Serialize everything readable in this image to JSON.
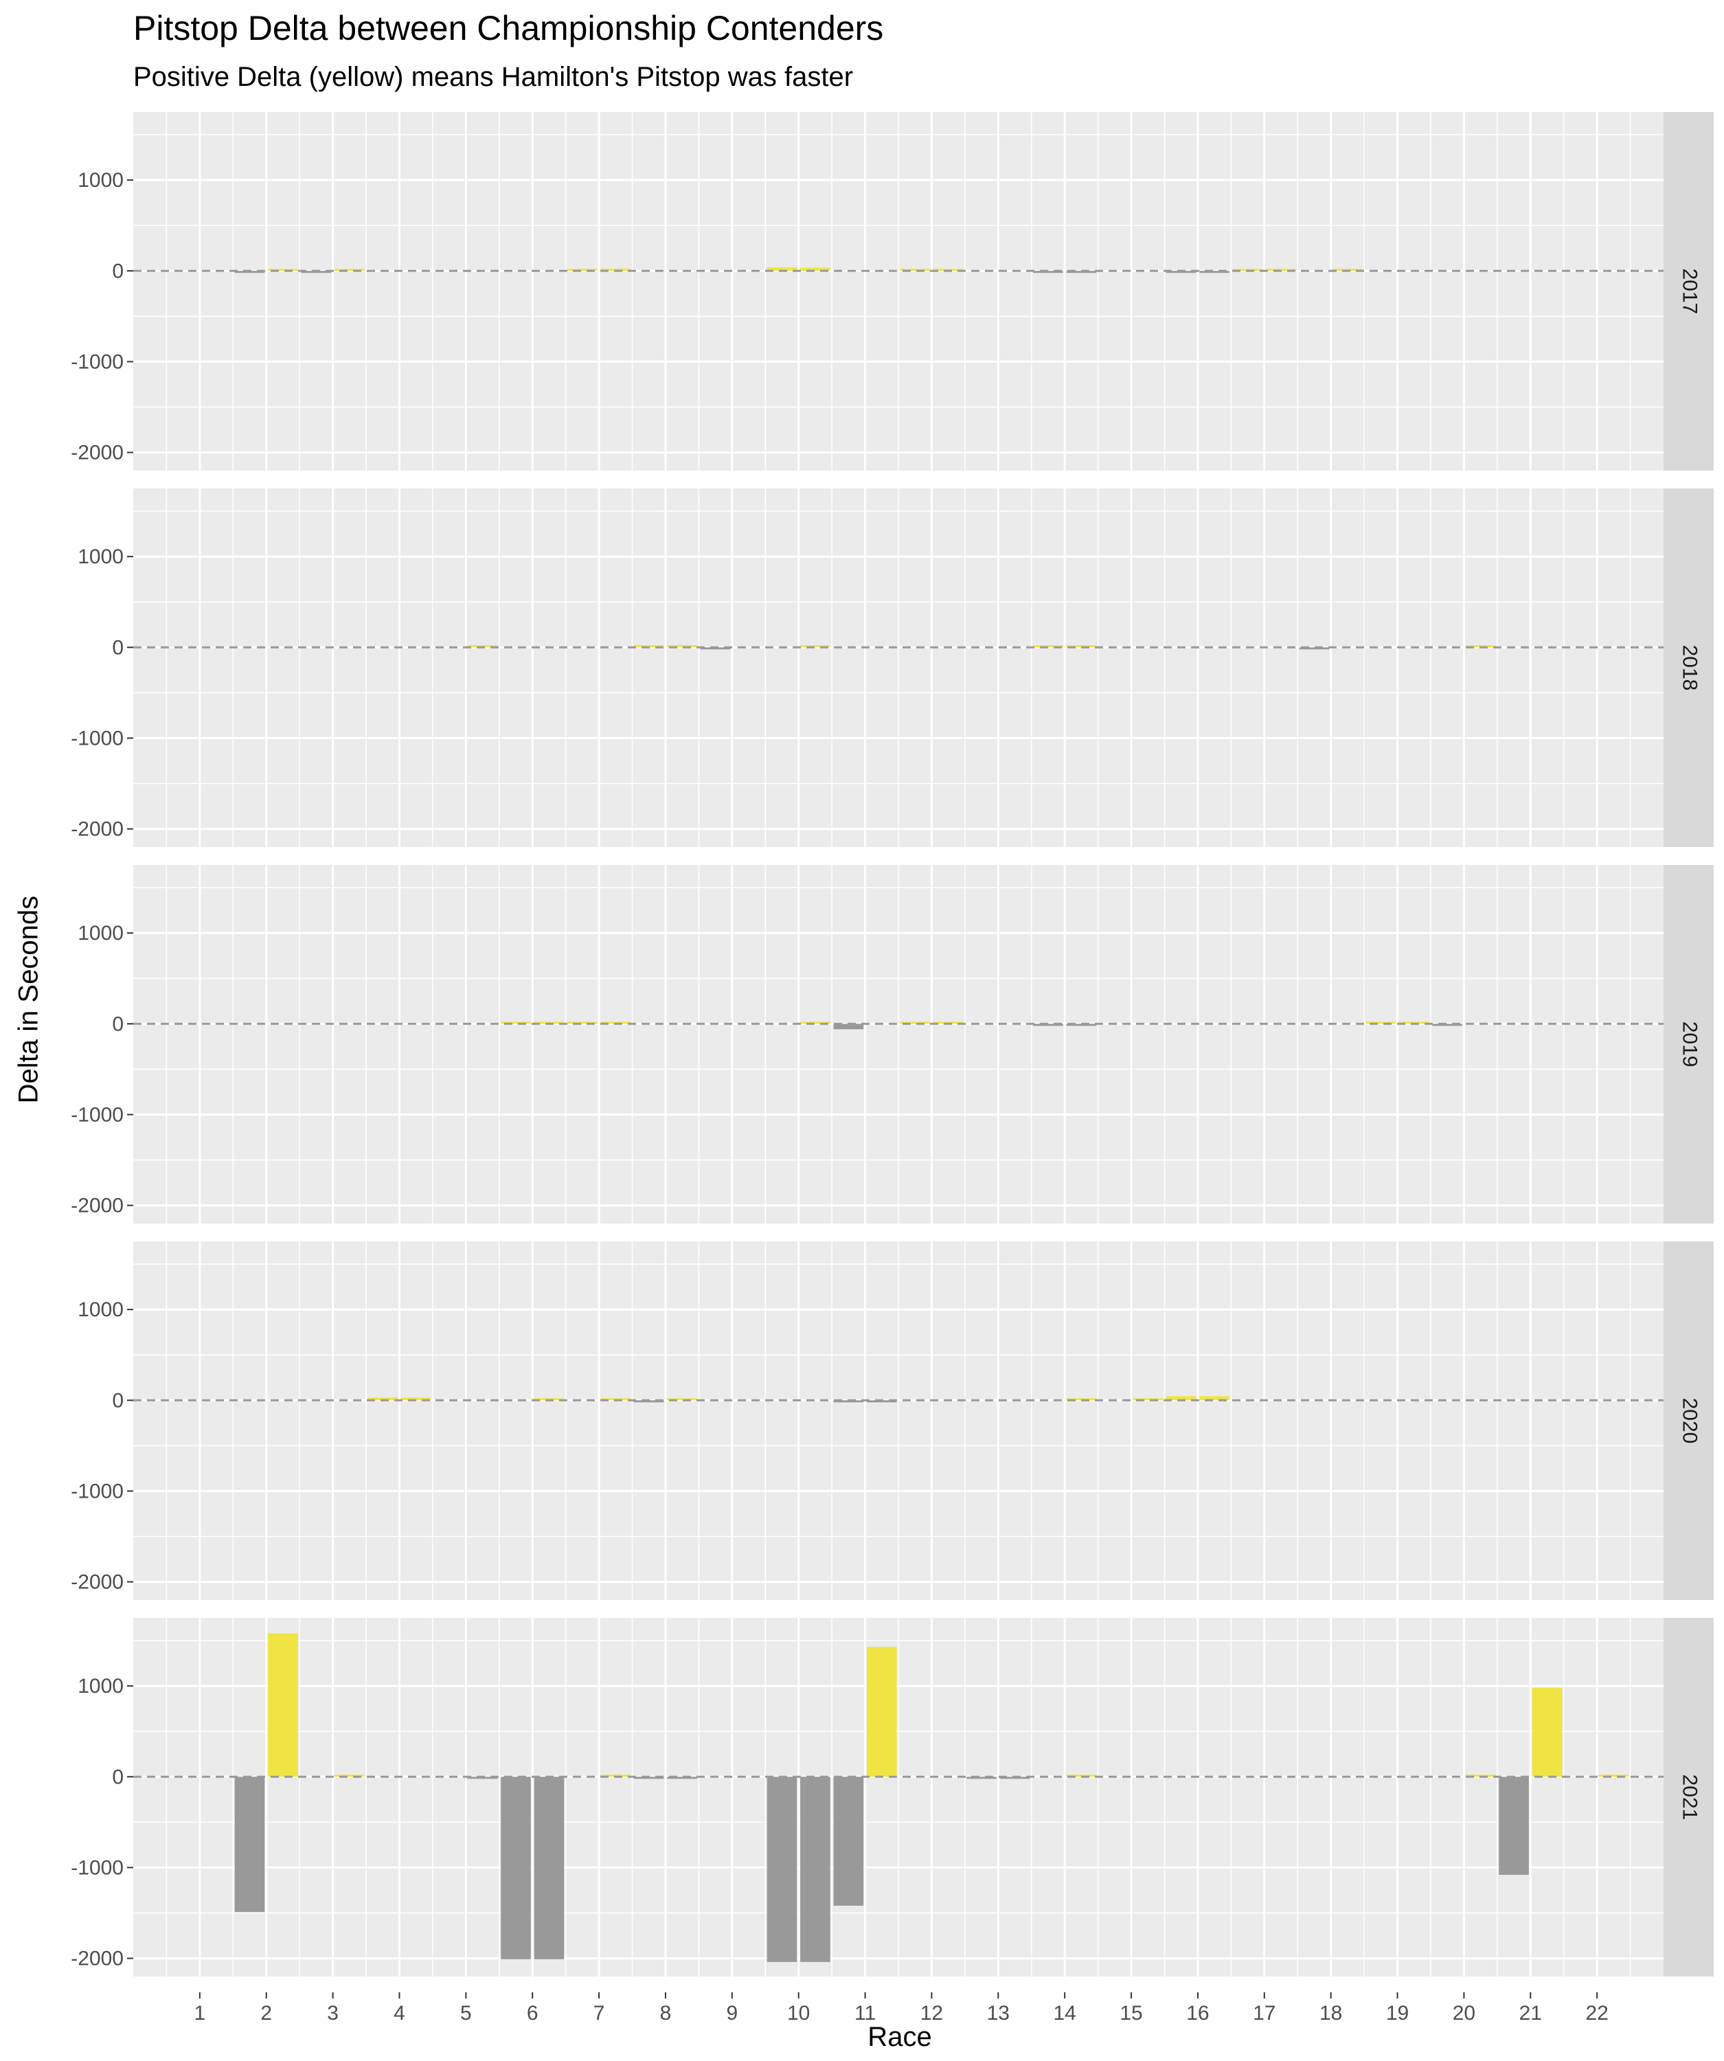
{
  "chart_data": {
    "type": "bar",
    "title": "Pitstop Delta between Championship Contenders",
    "subtitle": "Positive Delta (yellow) means Hamilton's Pitstop was faster",
    "xlabel": "Race",
    "ylabel": "Delta in Seconds",
    "x_ticks": [
      "1",
      "2",
      "3",
      "4",
      "5",
      "6",
      "7",
      "8",
      "9",
      "10",
      "11",
      "12",
      "13",
      "14",
      "15",
      "16",
      "17",
      "18",
      "19",
      "20",
      "21",
      "22"
    ],
    "y_ticks": [
      1000,
      0,
      -1000,
      -2000
    ],
    "ylim": [
      -2200,
      1750
    ],
    "xlim": [
      0,
      23
    ],
    "facet_by": "year",
    "reference_line": 0,
    "colors": {
      "positive": "#f0e442",
      "negative": "#999999",
      "panel": "#ebebeb",
      "strip": "#d9d9d9",
      "zero_line": "#999999"
    },
    "panels": [
      {
        "label": "2017",
        "bars": [
          {
            "x": 1.75,
            "y": -5
          },
          {
            "x": 2.25,
            "y": 15
          },
          {
            "x": 2.75,
            "y": -5
          },
          {
            "x": 3.25,
            "y": 5
          },
          {
            "x": 6.75,
            "y": 20
          },
          {
            "x": 7.25,
            "y": 25
          },
          {
            "x": 9.75,
            "y": 40
          },
          {
            "x": 10.25,
            "y": 35
          },
          {
            "x": 11.75,
            "y": 10
          },
          {
            "x": 12.25,
            "y": 10
          },
          {
            "x": 13.75,
            "y": -20
          },
          {
            "x": 14.25,
            "y": -20
          },
          {
            "x": 15.75,
            "y": -15
          },
          {
            "x": 16.25,
            "y": -15
          },
          {
            "x": 16.75,
            "y": 20
          },
          {
            "x": 17.25,
            "y": 20
          },
          {
            "x": 18.25,
            "y": 10
          }
        ]
      },
      {
        "label": "2018",
        "bars": [
          {
            "x": 5.25,
            "y": 10
          },
          {
            "x": 7.75,
            "y": 25
          },
          {
            "x": 8.25,
            "y": 25
          },
          {
            "x": 8.75,
            "y": -10
          },
          {
            "x": 10.25,
            "y": 20
          },
          {
            "x": 13.75,
            "y": 12
          },
          {
            "x": 14.25,
            "y": 12
          },
          {
            "x": 17.75,
            "y": -10
          },
          {
            "x": 20.25,
            "y": 12
          }
        ]
      },
      {
        "label": "2019",
        "bars": [
          {
            "x": 5.75,
            "y": 15
          },
          {
            "x": 6.25,
            "y": 15
          },
          {
            "x": 6.75,
            "y": 15
          },
          {
            "x": 7.25,
            "y": 15
          },
          {
            "x": 10.25,
            "y": 20
          },
          {
            "x": 10.75,
            "y": -60
          },
          {
            "x": 11.75,
            "y": 8
          },
          {
            "x": 12.25,
            "y": 8
          },
          {
            "x": 13.75,
            "y": -20
          },
          {
            "x": 14.25,
            "y": -20
          },
          {
            "x": 18.75,
            "y": 15
          },
          {
            "x": 19.25,
            "y": 15
          },
          {
            "x": 19.75,
            "y": -10
          }
        ]
      },
      {
        "label": "2020",
        "bars": [
          {
            "x": 3.75,
            "y": 30
          },
          {
            "x": 4.25,
            "y": 30
          },
          {
            "x": 6.25,
            "y": 20
          },
          {
            "x": 7.25,
            "y": 10
          },
          {
            "x": 7.75,
            "y": -20
          },
          {
            "x": 8.25,
            "y": 8
          },
          {
            "x": 10.75,
            "y": -10
          },
          {
            "x": 11.25,
            "y": -10
          },
          {
            "x": 14.25,
            "y": 15
          },
          {
            "x": 15.25,
            "y": 15
          },
          {
            "x": 15.75,
            "y": 45
          },
          {
            "x": 16.25,
            "y": 45
          }
        ]
      },
      {
        "label": "2021",
        "bars": [
          {
            "x": 1.75,
            "y": -1490
          },
          {
            "x": 2.25,
            "y": 1580
          },
          {
            "x": 3.25,
            "y": 15
          },
          {
            "x": 5.25,
            "y": -12
          },
          {
            "x": 5.75,
            "y": -2010
          },
          {
            "x": 6.25,
            "y": -2010
          },
          {
            "x": 7.25,
            "y": 15
          },
          {
            "x": 7.75,
            "y": -10
          },
          {
            "x": 8.25,
            "y": -10
          },
          {
            "x": 9.75,
            "y": -2040
          },
          {
            "x": 10.25,
            "y": -2040
          },
          {
            "x": 10.75,
            "y": -1420
          },
          {
            "x": 11.25,
            "y": 1430
          },
          {
            "x": 12.75,
            "y": -10
          },
          {
            "x": 13.25,
            "y": -10
          },
          {
            "x": 14.25,
            "y": 10
          },
          {
            "x": 20.25,
            "y": 15
          },
          {
            "x": 20.75,
            "y": -1080
          },
          {
            "x": 21.25,
            "y": 980
          },
          {
            "x": 22.25,
            "y": 15
          }
        ]
      }
    ]
  }
}
